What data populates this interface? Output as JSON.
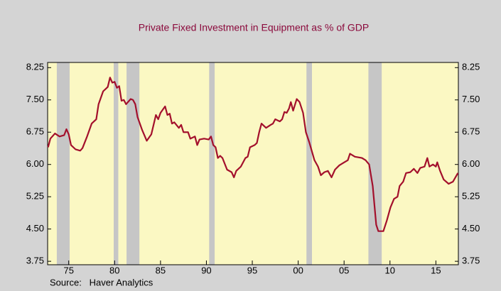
{
  "chart_data": {
    "type": "line",
    "title": "Private Fixed Investment in Equipment as % of GDP",
    "source": "Source:   Haver Analytics",
    "x": [
      1972.75,
      1973.0,
      1973.5,
      1974.0,
      1974.5,
      1974.75,
      1975.0,
      1975.25,
      1975.75,
      1976.25,
      1976.5,
      1977.0,
      1977.5,
      1978.0,
      1978.25,
      1978.75,
      1979.25,
      1979.5,
      1979.75,
      1980.0,
      1980.25,
      1980.5,
      1980.75,
      1981.0,
      1981.25,
      1981.75,
      1982.0,
      1982.25,
      1982.5,
      1983.0,
      1983.5,
      1984.0,
      1984.5,
      1984.75,
      1985.0,
      1985.5,
      1985.75,
      1986.0,
      1986.25,
      1986.5,
      1987.0,
      1987.25,
      1987.5,
      1988.0,
      1988.25,
      1988.75,
      1989.0,
      1989.25,
      1989.75,
      1990.25,
      1990.5,
      1990.75,
      1991.0,
      1991.25,
      1991.5,
      1991.75,
      1992.25,
      1992.75,
      1993.0,
      1993.25,
      1993.75,
      1994.25,
      1994.5,
      1994.75,
      1995.25,
      1995.5,
      1995.75,
      1996.0,
      1996.5,
      1997.0,
      1997.25,
      1997.5,
      1998.0,
      1998.25,
      1998.5,
      1998.75,
      1999.0,
      1999.2,
      1999.45,
      1999.84,
      2000.15,
      2000.53,
      2000.84,
      2001.23,
      2001.77,
      2002.16,
      2002.47,
      2002.85,
      2003.24,
      2003.63,
      2004.01,
      2004.48,
      2005.02,
      2005.41,
      2005.64,
      2006.18,
      2006.95,
      2007.34,
      2007.73,
      2008.12,
      2008.5,
      2008.73,
      2009.28,
      2009.66,
      2010.05,
      2010.44,
      2010.82,
      2011.05,
      2011.44,
      2011.75,
      2012.21,
      2012.6,
      2012.99,
      2013.3,
      2013.76,
      2014.07,
      2014.3,
      2014.69,
      2015.0,
      2015.15,
      2015.46,
      2015.85,
      2016.39,
      2016.86,
      2017.4
    ],
    "series": [
      {
        "color": "#a3102c",
        "axis": "y",
        "values": [
          6.4,
          6.6,
          6.72,
          6.65,
          6.68,
          6.82,
          6.7,
          6.45,
          6.35,
          6.32,
          6.38,
          6.65,
          6.95,
          7.05,
          7.4,
          7.7,
          7.8,
          8.02,
          7.9,
          7.92,
          7.78,
          7.82,
          7.48,
          7.5,
          7.4,
          7.52,
          7.5,
          7.4,
          7.1,
          6.8,
          6.55,
          6.7,
          7.15,
          7.05,
          7.2,
          7.35,
          7.15,
          7.18,
          6.95,
          6.98,
          6.85,
          6.92,
          6.75,
          6.75,
          6.6,
          6.65,
          6.45,
          6.58,
          6.6,
          6.58,
          6.65,
          6.45,
          6.4,
          6.15,
          6.2,
          6.15,
          5.88,
          5.82,
          5.7,
          5.85,
          5.95,
          6.15,
          6.18,
          6.4,
          6.45,
          6.5,
          6.75,
          6.95,
          6.85,
          6.92,
          6.95,
          7.05,
          7.0,
          7.05,
          7.22,
          7.2,
          7.3,
          7.45,
          7.25,
          7.52,
          7.45,
          7.2,
          6.75,
          6.5,
          6.1,
          5.95,
          5.75,
          5.82,
          5.85,
          5.7,
          5.88,
          5.98,
          6.05,
          6.1,
          6.25,
          6.18,
          6.15,
          6.1,
          6.0,
          5.5,
          4.6,
          4.45,
          4.45,
          4.7,
          5.0,
          5.2,
          5.25,
          5.5,
          5.6,
          5.8,
          5.82,
          5.9,
          5.8,
          5.92,
          5.95,
          6.15,
          5.95,
          6.0,
          5.95,
          6.05,
          5.85,
          5.65,
          5.55,
          5.6,
          5.8
        ]
      }
    ],
    "recessions": [
      [
        1973.7,
        1975.1
      ],
      [
        1979.9,
        1980.4
      ],
      [
        1981.3,
        1982.7
      ],
      [
        1990.3,
        1990.9
      ],
      [
        2000.9,
        2001.5
      ],
      [
        2007.65,
        2009.1
      ]
    ],
    "xlim": [
      1972.7,
      2017.45
    ],
    "xticks": [
      {
        "value": 1975,
        "label": "75"
      },
      {
        "value": 1980,
        "label": "80"
      },
      {
        "value": 1985,
        "label": "85"
      },
      {
        "value": 1990,
        "label": "90"
      },
      {
        "value": 1995,
        "label": "95"
      },
      {
        "value": 2000,
        "label": "00"
      },
      {
        "value": 2005,
        "label": "05"
      },
      {
        "value": 2010,
        "label": "10"
      },
      {
        "value": 2015,
        "label": "15"
      }
    ],
    "ylim": [
      3.67,
      8.37
    ],
    "yticks": [
      8.25,
      {
        "value": 7.5,
        "label": "7.50"
      },
      6.75,
      {
        "value": 6.0,
        "label": "6.00"
      },
      5.25,
      {
        "value": 4.5,
        "label": "4.50"
      },
      3.75
    ],
    "y2lim": [
      3.67,
      8.37
    ],
    "y2ticks": [
      8.25,
      {
        "value": 7.5,
        "label": "7.50"
      },
      6.75,
      {
        "value": 6.0,
        "label": "6.00"
      },
      5.25,
      {
        "value": 4.5,
        "label": "4.50"
      },
      3.75
    ]
  }
}
